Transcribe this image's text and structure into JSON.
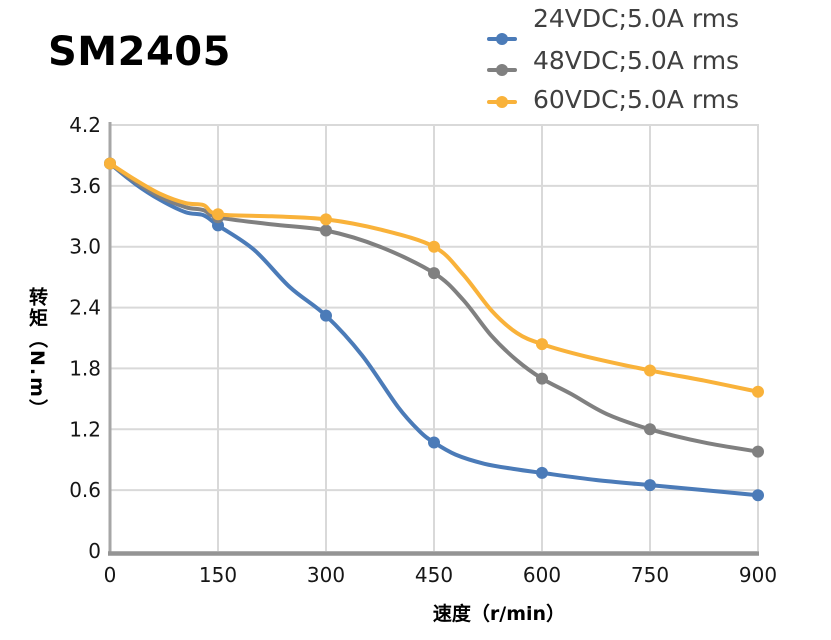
{
  "title": "SM2405",
  "axis": {
    "x_title": "速度（r/min）",
    "y_title": "转矩（N.m）"
  },
  "colors": {
    "grid": "#d9d9d9",
    "axis_left": "#a6a6a6",
    "axis_bottom": "#949494",
    "tick_text": "#161616",
    "legend_text": "#404040"
  },
  "chart_data": {
    "type": "line",
    "title": "SM2405",
    "xlabel": "速度（r/min）",
    "ylabel": "转矩（N.m）",
    "xlim": [
      0,
      900
    ],
    "ylim": [
      0,
      4.2
    ],
    "x_ticks": [
      0,
      150,
      300,
      450,
      600,
      750,
      900
    ],
    "y_ticks": [
      0,
      0.6,
      1.2,
      1.8,
      2.4,
      3.0,
      3.6,
      4.2
    ],
    "grid": true,
    "legend_position": "top-right",
    "marker_x": [
      0,
      150,
      300,
      450,
      600,
      750,
      900
    ],
    "series": [
      {
        "name": "24VDC;5.0A rms",
        "color": "#4B7BB8",
        "marker_values": [
          3.82,
          3.21,
          2.32,
          1.07,
          0.77,
          0.65,
          0.55
        ],
        "curve": [
          [
            0,
            3.82
          ],
          [
            35,
            3.62
          ],
          [
            70,
            3.46
          ],
          [
            105,
            3.34
          ],
          [
            130,
            3.31
          ],
          [
            150,
            3.21
          ],
          [
            200,
            2.97
          ],
          [
            250,
            2.6
          ],
          [
            300,
            2.32
          ],
          [
            350,
            1.93
          ],
          [
            400,
            1.42
          ],
          [
            430,
            1.18
          ],
          [
            450,
            1.07
          ],
          [
            480,
            0.95
          ],
          [
            520,
            0.86
          ],
          [
            560,
            0.81
          ],
          [
            600,
            0.77
          ],
          [
            675,
            0.7
          ],
          [
            750,
            0.65
          ],
          [
            825,
            0.6
          ],
          [
            900,
            0.55
          ]
        ]
      },
      {
        "name": "48VDC;5.0A rms",
        "color": "#808080",
        "marker_values": [
          3.82,
          3.29,
          3.16,
          2.74,
          1.7,
          1.2,
          0.98
        ],
        "curve": [
          [
            0,
            3.82
          ],
          [
            35,
            3.64
          ],
          [
            70,
            3.49
          ],
          [
            105,
            3.39
          ],
          [
            130,
            3.36
          ],
          [
            150,
            3.29
          ],
          [
            225,
            3.22
          ],
          [
            300,
            3.16
          ],
          [
            375,
            3.0
          ],
          [
            450,
            2.74
          ],
          [
            490,
            2.48
          ],
          [
            530,
            2.12
          ],
          [
            565,
            1.88
          ],
          [
            600,
            1.7
          ],
          [
            640,
            1.55
          ],
          [
            690,
            1.35
          ],
          [
            750,
            1.2
          ],
          [
            825,
            1.07
          ],
          [
            900,
            0.98
          ]
        ]
      },
      {
        "name": "60VDC;5.0A rms",
        "color": "#F9B23A",
        "marker_values": [
          3.82,
          3.32,
          3.27,
          3.0,
          2.04,
          1.78,
          1.57
        ],
        "curve": [
          [
            0,
            3.82
          ],
          [
            35,
            3.66
          ],
          [
            70,
            3.52
          ],
          [
            105,
            3.43
          ],
          [
            130,
            3.41
          ],
          [
            150,
            3.32
          ],
          [
            225,
            3.3
          ],
          [
            300,
            3.27
          ],
          [
            375,
            3.17
          ],
          [
            450,
            3.0
          ],
          [
            490,
            2.73
          ],
          [
            530,
            2.37
          ],
          [
            565,
            2.15
          ],
          [
            600,
            2.04
          ],
          [
            660,
            1.92
          ],
          [
            750,
            1.78
          ],
          [
            825,
            1.68
          ],
          [
            900,
            1.57
          ]
        ]
      }
    ]
  }
}
